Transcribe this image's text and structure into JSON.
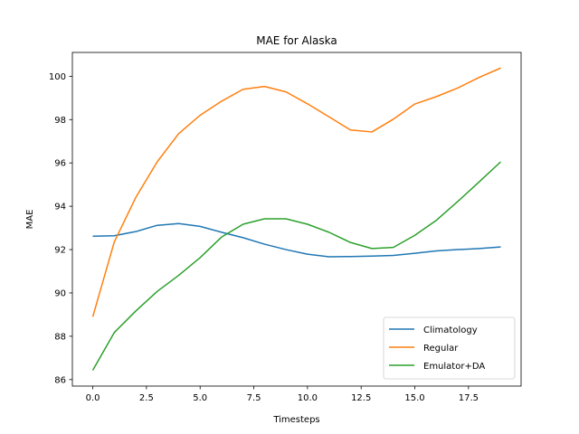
{
  "chart_data": {
    "type": "line",
    "title": "MAE for Alaska",
    "xlabel": "Timesteps",
    "ylabel": "MAE",
    "xlim": [
      -0.95,
      19.95
    ],
    "ylim": [
      85.7,
      101.1
    ],
    "x_ticks": [
      0.0,
      2.5,
      5.0,
      7.5,
      10.0,
      12.5,
      15.0,
      17.5
    ],
    "x_tick_labels": [
      "0.0",
      "2.5",
      "5.0",
      "7.5",
      "10.0",
      "12.5",
      "15.0",
      "17.5"
    ],
    "y_ticks": [
      86,
      88,
      90,
      92,
      94,
      96,
      98,
      100
    ],
    "y_tick_labels": [
      "86",
      "88",
      "90",
      "92",
      "94",
      "96",
      "98",
      "100"
    ],
    "grid": false,
    "legend_position": "lower-right",
    "x": [
      0,
      1,
      2,
      3,
      4,
      5,
      6,
      7,
      8,
      9,
      10,
      11,
      12,
      13,
      14,
      15,
      16,
      17,
      18,
      19
    ],
    "series": [
      {
        "name": "Climatology",
        "color": "#1f77b4",
        "values": [
          92.62,
          92.64,
          92.83,
          93.12,
          93.2,
          93.07,
          92.8,
          92.55,
          92.25,
          92.0,
          91.79,
          91.67,
          91.68,
          91.7,
          91.73,
          91.83,
          91.94,
          92.0,
          92.05,
          92.12
        ]
      },
      {
        "name": "Regular",
        "color": "#ff7f0e",
        "values": [
          88.9,
          92.35,
          94.4,
          96.05,
          97.35,
          98.2,
          98.85,
          99.4,
          99.53,
          99.28,
          98.73,
          98.13,
          97.52,
          97.43,
          98.02,
          98.72,
          99.06,
          99.46,
          99.95,
          100.38
        ]
      },
      {
        "name": "Emulator+DA",
        "color": "#2ca02c",
        "values": [
          86.43,
          88.17,
          89.16,
          90.07,
          90.81,
          91.63,
          92.58,
          93.17,
          93.42,
          93.42,
          93.17,
          92.8,
          92.33,
          92.05,
          92.1,
          92.66,
          93.35,
          94.22,
          95.13,
          96.05
        ]
      }
    ]
  }
}
